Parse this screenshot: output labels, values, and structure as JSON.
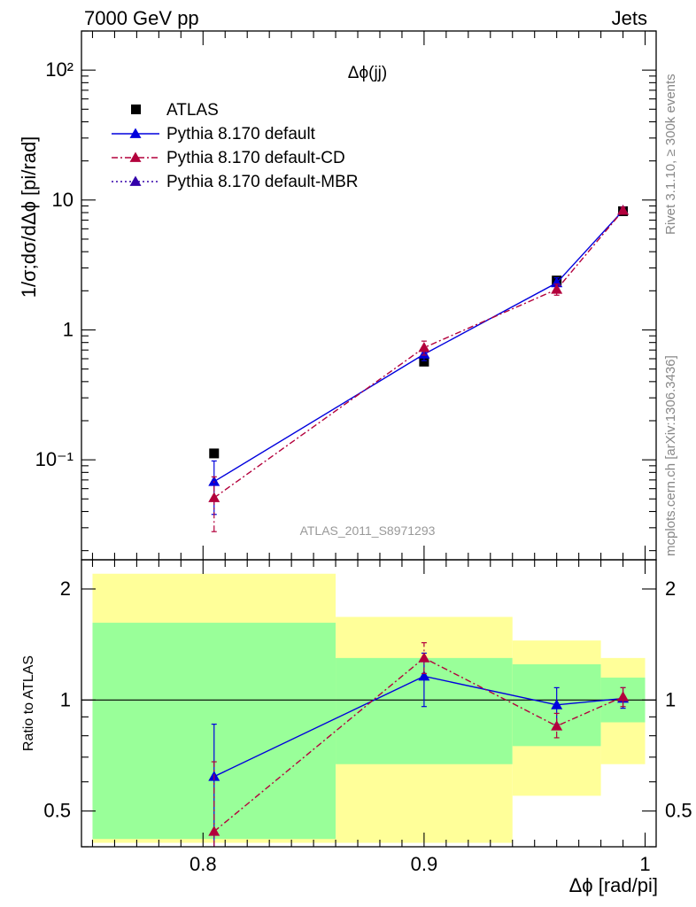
{
  "header": {
    "left": "7000 GeV pp",
    "right": "Jets"
  },
  "side_text": {
    "top": "Rivet 3.1.10, ≥ 300k events",
    "bottom": "mcplots.cern.ch [arXiv:1306.3436]"
  },
  "chart_data": [
    {
      "type": "line",
      "scale": "log",
      "title": "Δϕ(jj)",
      "watermark": "ATLAS_2011_S8971293",
      "xlabel": "",
      "ylabel": "1/σ;dσ/dΔϕ [pi/rad]",
      "xlim": [
        0.745,
        1.005
      ],
      "ylim": [
        0.017,
        200
      ],
      "legend_position": "top-left",
      "y_tick_labels": [
        "10⁻¹",
        "1",
        "10",
        "10²"
      ],
      "y_tick_values": [
        0.1,
        1,
        10,
        100
      ],
      "series": [
        {
          "name": "ATLAS",
          "style": "marker",
          "color": "#000000",
          "marker": "square",
          "x": [
            0.805,
            0.9,
            0.96,
            0.99
          ],
          "y": [
            0.112,
            0.57,
            2.4,
            8.2
          ],
          "yerr": [
            0.0,
            0.0,
            0.0,
            0.0
          ]
        },
        {
          "name": "Pythia 8.170 default",
          "style": "solid",
          "color": "#0000dd",
          "marker": "triangle",
          "x": [
            0.805,
            0.9,
            0.96,
            0.99
          ],
          "y": [
            0.068,
            0.65,
            2.3,
            8.3
          ],
          "yerr": [
            0.03,
            0.07,
            0.22,
            0.5
          ]
        },
        {
          "name": "Pythia 8.170 default-CD",
          "style": "dashdot",
          "color": "#b3003c",
          "marker": "triangle",
          "x": [
            0.805,
            0.9,
            0.96,
            0.99
          ],
          "y": [
            0.051,
            0.73,
            2.05,
            8.3
          ],
          "yerr": [
            0.023,
            0.09,
            0.2,
            0.5
          ]
        },
        {
          "name": "Pythia 8.170 default-MBR",
          "style": "dotted",
          "color": "#3300aa",
          "marker": "triangle",
          "x": [],
          "y": [],
          "yerr": []
        }
      ]
    },
    {
      "type": "line",
      "scale": "log",
      "title": "",
      "xlabel": "Δϕ [rad/pi]",
      "ylabel": "Ratio to ATLAS",
      "xlim": [
        0.745,
        1.005
      ],
      "ylim": [
        0.4,
        2.4
      ],
      "x_tick_labels": [
        "0.8",
        "0.9",
        "1"
      ],
      "x_tick_values": [
        0.8,
        0.9,
        1.0
      ],
      "y_tick_labels": [
        "0.5",
        "1",
        "2"
      ],
      "y_tick_values": [
        0.5,
        1,
        2
      ],
      "reference_line": 1,
      "bands": [
        {
          "x": [
            0.75,
            0.86
          ],
          "inner": [
            0.42,
            1.62
          ],
          "outer": [
            0.41,
            2.2
          ]
        },
        {
          "x": [
            0.86,
            0.94
          ],
          "inner": [
            0.67,
            1.3
          ],
          "outer": [
            0.41,
            1.68
          ]
        },
        {
          "x": [
            0.94,
            0.98
          ],
          "inner": [
            0.75,
            1.25
          ],
          "outer": [
            0.55,
            1.45
          ]
        },
        {
          "x": [
            0.98,
            1.0
          ],
          "inner": [
            0.87,
            1.15
          ],
          "outer": [
            0.67,
            1.3
          ]
        }
      ],
      "series": [
        {
          "name": "Pythia 8.170 default",
          "style": "solid",
          "color": "#0000dd",
          "x": [
            0.805,
            0.9,
            0.96,
            0.99
          ],
          "y": [
            0.62,
            1.16,
            0.97,
            1.01
          ],
          "ylo": [
            0.3,
            0.96,
            0.86,
            0.95
          ],
          "yhi": [
            0.86,
            1.34,
            1.08,
            1.08
          ]
        },
        {
          "name": "Pythia 8.170 default-CD",
          "style": "dashdot",
          "color": "#b3003c",
          "x": [
            0.805,
            0.9,
            0.96,
            0.99
          ],
          "y": [
            0.44,
            1.3,
            0.85,
            1.02
          ],
          "ylo": [
            0.3,
            1.18,
            0.79,
            0.96
          ],
          "yhi": [
            0.68,
            1.43,
            0.92,
            1.08
          ]
        }
      ]
    }
  ]
}
